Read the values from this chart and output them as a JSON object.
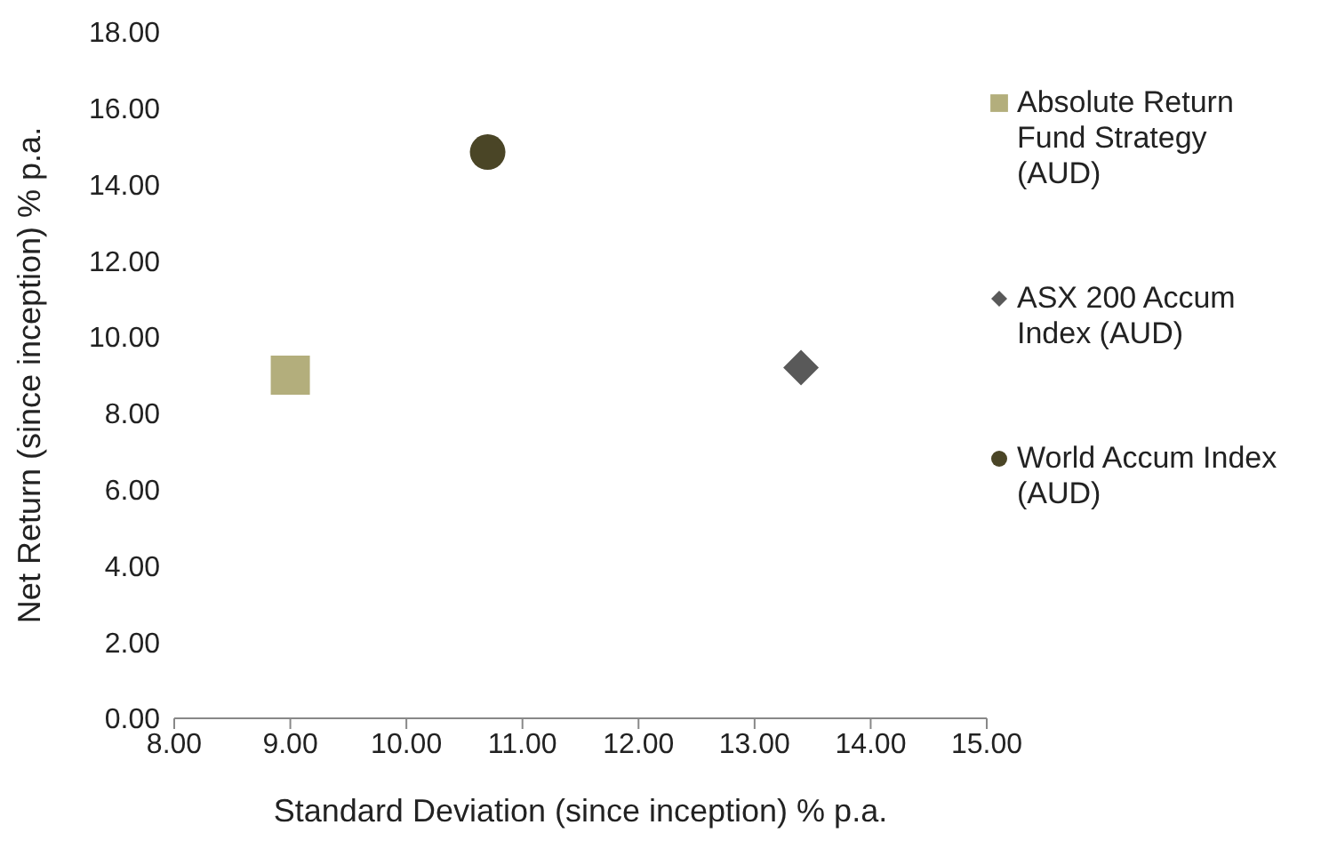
{
  "chart_data": {
    "type": "scatter",
    "xlabel": "Standard Deviation (since inception) % p.a.",
    "ylabel": "Net Return (since inception) % p.a.",
    "xlim": [
      8,
      15
    ],
    "xticks": [
      {
        "value": 8,
        "label": "8.00"
      },
      {
        "value": 9,
        "label": "9.00"
      },
      {
        "value": 10,
        "label": "10.00"
      },
      {
        "value": 11,
        "label": "11.00"
      },
      {
        "value": 12,
        "label": "12.00"
      },
      {
        "value": 13,
        "label": "13.00"
      },
      {
        "value": 14,
        "label": "14.00"
      },
      {
        "value": 15,
        "label": "15.00"
      }
    ],
    "ylim": [
      0,
      18
    ],
    "yticks": [
      {
        "value": 0,
        "label": "0.00"
      },
      {
        "value": 2,
        "label": "2.00"
      },
      {
        "value": 4,
        "label": "4.00"
      },
      {
        "value": 6,
        "label": "6.00"
      },
      {
        "value": 8,
        "label": "8.00"
      },
      {
        "value": 10,
        "label": "10.00"
      },
      {
        "value": 12,
        "label": "12.00"
      },
      {
        "value": 14,
        "label": "14.00"
      },
      {
        "value": 16,
        "label": "16.00"
      },
      {
        "value": 18,
        "label": "18.00"
      }
    ],
    "grid": false,
    "legend": "right",
    "series": [
      {
        "name": "Absolute Return Fund Strategy (AUD)",
        "color": "#b3ae7c",
        "marker": "square",
        "x": [
          9.0
        ],
        "values": [
          9.0
        ]
      },
      {
        "name": "ASX 200 Accum Index (AUD)",
        "color": "#595959",
        "marker": "diamond",
        "x": [
          13.4
        ],
        "values": [
          9.2
        ]
      },
      {
        "name": "World Accum Index (AUD)",
        "color": "#4a4526",
        "marker": "circle",
        "x": [
          10.7
        ],
        "values": [
          14.85
        ]
      }
    ]
  }
}
